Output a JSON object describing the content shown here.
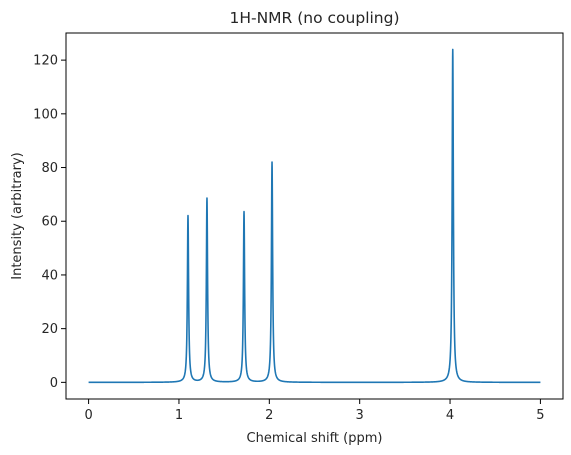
{
  "chart_data": {
    "type": "line",
    "title": "1H-NMR (no coupling)",
    "xlabel": "Chemical shift (ppm)",
    "ylabel": "Intensity (arbitrary)",
    "xlim": [
      -0.25,
      5.25
    ],
    "ylim": [
      -6.2,
      130.1
    ],
    "x_ticks": [
      0,
      1,
      2,
      3,
      4,
      5
    ],
    "y_ticks": [
      0,
      20,
      40,
      60,
      80,
      100,
      120
    ],
    "grid": false,
    "line_color": "#1f77b4",
    "series": [
      {
        "peaks": [
          {
            "x": 1.1,
            "y": 62
          },
          {
            "x": 1.31,
            "y": 68.5
          },
          {
            "x": 1.72,
            "y": 63.5
          },
          {
            "x": 2.03,
            "y": 82
          },
          {
            "x": 4.03,
            "y": 124
          }
        ],
        "x_range": [
          0,
          5
        ],
        "baseline": 0,
        "half_width": 0.008
      }
    ]
  }
}
